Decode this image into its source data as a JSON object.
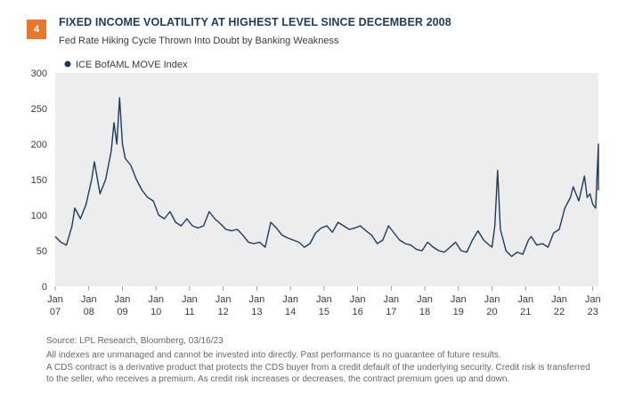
{
  "header": {
    "figure_number": "4",
    "title": "FIXED INCOME VOLATILITY AT HIGHEST LEVEL SINCE DECEMBER 2008",
    "subtitle": "Fed Rate Hiking Cycle Thrown Into Doubt by Banking Weakness"
  },
  "colors": {
    "accent": "#e8772e",
    "series": "#1f3b5c",
    "plot_bg": "#ededed"
  },
  "chart_data": {
    "type": "line",
    "xlabel": "",
    "ylabel": "",
    "ylim": [
      0,
      300
    ],
    "yticks": [
      0,
      50,
      100,
      150,
      200,
      250,
      300
    ],
    "xlim": [
      "2007-01",
      "2023-03"
    ],
    "xticks": [
      {
        "date": "2007-01",
        "line1": "Jan",
        "line2": "07"
      },
      {
        "date": "2008-01",
        "line1": "Jan",
        "line2": "08"
      },
      {
        "date": "2009-01",
        "line1": "Jan",
        "line2": "09"
      },
      {
        "date": "2010-01",
        "line1": "Jan",
        "line2": "10"
      },
      {
        "date": "2011-01",
        "line1": "Jan",
        "line2": "11"
      },
      {
        "date": "2012-01",
        "line1": "Jan",
        "line2": "12"
      },
      {
        "date": "2013-01",
        "line1": "Jan",
        "line2": "13"
      },
      {
        "date": "2014-01",
        "line1": "Jan",
        "line2": "14"
      },
      {
        "date": "2015-01",
        "line1": "Jan",
        "line2": "15"
      },
      {
        "date": "2016-01",
        "line1": "Jan",
        "line2": "16"
      },
      {
        "date": "2017-01",
        "line1": "Jan",
        "line2": "17"
      },
      {
        "date": "2018-01",
        "line1": "Jan",
        "line2": "18"
      },
      {
        "date": "2019-01",
        "line1": "Jan",
        "line2": "19"
      },
      {
        "date": "2020-01",
        "line1": "Jan",
        "line2": "20"
      },
      {
        "date": "2021-01",
        "line1": "Jan",
        "line2": "21"
      },
      {
        "date": "2022-01",
        "line1": "Jan",
        "line2": "22"
      },
      {
        "date": "2023-01",
        "line1": "Jan",
        "line2": "23"
      }
    ],
    "grid": false,
    "legend_position": "top-left",
    "series": [
      {
        "name": "ICE BofAML MOVE Index",
        "points": [
          [
            "2007-01",
            70
          ],
          [
            "2007-03",
            62
          ],
          [
            "2007-05",
            58
          ],
          [
            "2007-07",
            85
          ],
          [
            "2007-08",
            110
          ],
          [
            "2007-10",
            95
          ],
          [
            "2007-12",
            115
          ],
          [
            "2008-02",
            150
          ],
          [
            "2008-03",
            175
          ],
          [
            "2008-05",
            130
          ],
          [
            "2008-07",
            150
          ],
          [
            "2008-09",
            190
          ],
          [
            "2008-10",
            230
          ],
          [
            "2008-11",
            200
          ],
          [
            "2008-12",
            265
          ],
          [
            "2009-01",
            200
          ],
          [
            "2009-02",
            180
          ],
          [
            "2009-04",
            170
          ],
          [
            "2009-06",
            150
          ],
          [
            "2009-08",
            135
          ],
          [
            "2009-10",
            125
          ],
          [
            "2009-12",
            120
          ],
          [
            "2010-02",
            100
          ],
          [
            "2010-04",
            95
          ],
          [
            "2010-06",
            105
          ],
          [
            "2010-08",
            90
          ],
          [
            "2010-10",
            85
          ],
          [
            "2010-12",
            95
          ],
          [
            "2011-02",
            85
          ],
          [
            "2011-04",
            82
          ],
          [
            "2011-06",
            85
          ],
          [
            "2011-08",
            105
          ],
          [
            "2011-10",
            95
          ],
          [
            "2011-12",
            88
          ],
          [
            "2012-02",
            80
          ],
          [
            "2012-04",
            78
          ],
          [
            "2012-06",
            80
          ],
          [
            "2012-08",
            72
          ],
          [
            "2012-10",
            62
          ],
          [
            "2012-12",
            60
          ],
          [
            "2013-02",
            62
          ],
          [
            "2013-04",
            55
          ],
          [
            "2013-06",
            90
          ],
          [
            "2013-08",
            82
          ],
          [
            "2013-10",
            72
          ],
          [
            "2013-12",
            68
          ],
          [
            "2014-02",
            65
          ],
          [
            "2014-04",
            62
          ],
          [
            "2014-06",
            55
          ],
          [
            "2014-08",
            60
          ],
          [
            "2014-10",
            75
          ],
          [
            "2014-12",
            82
          ],
          [
            "2015-02",
            85
          ],
          [
            "2015-04",
            76
          ],
          [
            "2015-06",
            90
          ],
          [
            "2015-08",
            85
          ],
          [
            "2015-10",
            80
          ],
          [
            "2015-12",
            82
          ],
          [
            "2016-02",
            85
          ],
          [
            "2016-04",
            78
          ],
          [
            "2016-06",
            72
          ],
          [
            "2016-08",
            60
          ],
          [
            "2016-10",
            65
          ],
          [
            "2016-12",
            85
          ],
          [
            "2017-02",
            75
          ],
          [
            "2017-04",
            65
          ],
          [
            "2017-06",
            60
          ],
          [
            "2017-08",
            58
          ],
          [
            "2017-10",
            52
          ],
          [
            "2017-12",
            50
          ],
          [
            "2018-02",
            62
          ],
          [
            "2018-04",
            55
          ],
          [
            "2018-06",
            50
          ],
          [
            "2018-08",
            48
          ],
          [
            "2018-10",
            55
          ],
          [
            "2018-12",
            62
          ],
          [
            "2019-02",
            50
          ],
          [
            "2019-04",
            48
          ],
          [
            "2019-06",
            65
          ],
          [
            "2019-08",
            78
          ],
          [
            "2019-10",
            65
          ],
          [
            "2019-12",
            58
          ],
          [
            "2020-01",
            55
          ],
          [
            "2020-02",
            85
          ],
          [
            "2020-03",
            163
          ],
          [
            "2020-04",
            80
          ],
          [
            "2020-06",
            50
          ],
          [
            "2020-08",
            42
          ],
          [
            "2020-10",
            48
          ],
          [
            "2020-12",
            45
          ],
          [
            "2021-02",
            65
          ],
          [
            "2021-03",
            70
          ],
          [
            "2021-05",
            58
          ],
          [
            "2021-07",
            60
          ],
          [
            "2021-09",
            55
          ],
          [
            "2021-11",
            75
          ],
          [
            "2022-01",
            80
          ],
          [
            "2022-03",
            110
          ],
          [
            "2022-05",
            125
          ],
          [
            "2022-06",
            140
          ],
          [
            "2022-08",
            120
          ],
          [
            "2022-10",
            155
          ],
          [
            "2022-11",
            125
          ],
          [
            "2022-12",
            130
          ],
          [
            "2023-01",
            115
          ],
          [
            "2023-02",
            110
          ],
          [
            "2023-03",
            200
          ],
          [
            "2023-03",
            135
          ]
        ]
      }
    ]
  },
  "footer": {
    "source": "Source: LPL Research, Bloomberg,  03/16/23",
    "disclaimer": "All indexes are unmanaged and cannot be invested into directly. Past performance is no guarantee of future results.",
    "note": "A CDS contract is a derivative product that protects the CDS buyer from a credit default of the underlying security. Credit risk is transferred to the seller, who receives a premium. As credit risk increases or decreases, the contract premium goes up and down."
  }
}
